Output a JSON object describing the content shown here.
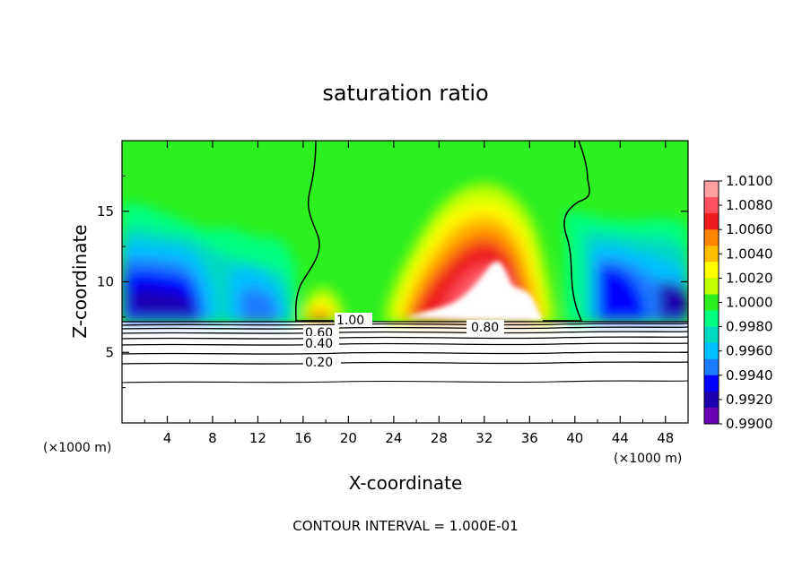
{
  "chart_data": {
    "type": "heatmap",
    "title": "saturation ratio",
    "xlabel": "X-coordinate",
    "ylabel": "Z-coordinate",
    "x_unit": "(×1000 m)",
    "z_unit": "(×1000 m)",
    "xlim": [
      0,
      50
    ],
    "ylim": [
      0,
      20
    ],
    "x_ticks": [
      "4",
      "8",
      "12",
      "16",
      "20",
      "24",
      "28",
      "32",
      "36",
      "40",
      "44",
      "48"
    ],
    "y_ticks": [
      "5",
      "10",
      "15"
    ],
    "colorbar": {
      "range": [
        0.99,
        1.01
      ],
      "tick_labels": [
        "1.0100",
        "1.0080",
        "1.0060",
        "1.0040",
        "1.0020",
        "1.0000",
        "0.9980",
        "0.9960",
        "0.9940",
        "0.9920",
        "0.9900"
      ],
      "colors": [
        "#ff9fa0",
        "#ff5060",
        "#ee1c1c",
        "#ff8400",
        "#ffbe00",
        "#ffff00",
        "#c0ff00",
        "#2cf020",
        "#00ff80",
        "#00d8c0",
        "#00c0ff",
        "#1a7cff",
        "#0000ff",
        "#1e00b0",
        "#6a00b4"
      ]
    },
    "contour_labels": [
      "1.00",
      "0.80",
      "0.60",
      "0.40",
      "0.20"
    ],
    "contour_levels": [
      1.0,
      0.8,
      0.6,
      0.4,
      0.2
    ],
    "note": "CONTOUR INTERVAL = 1.000E-01"
  }
}
